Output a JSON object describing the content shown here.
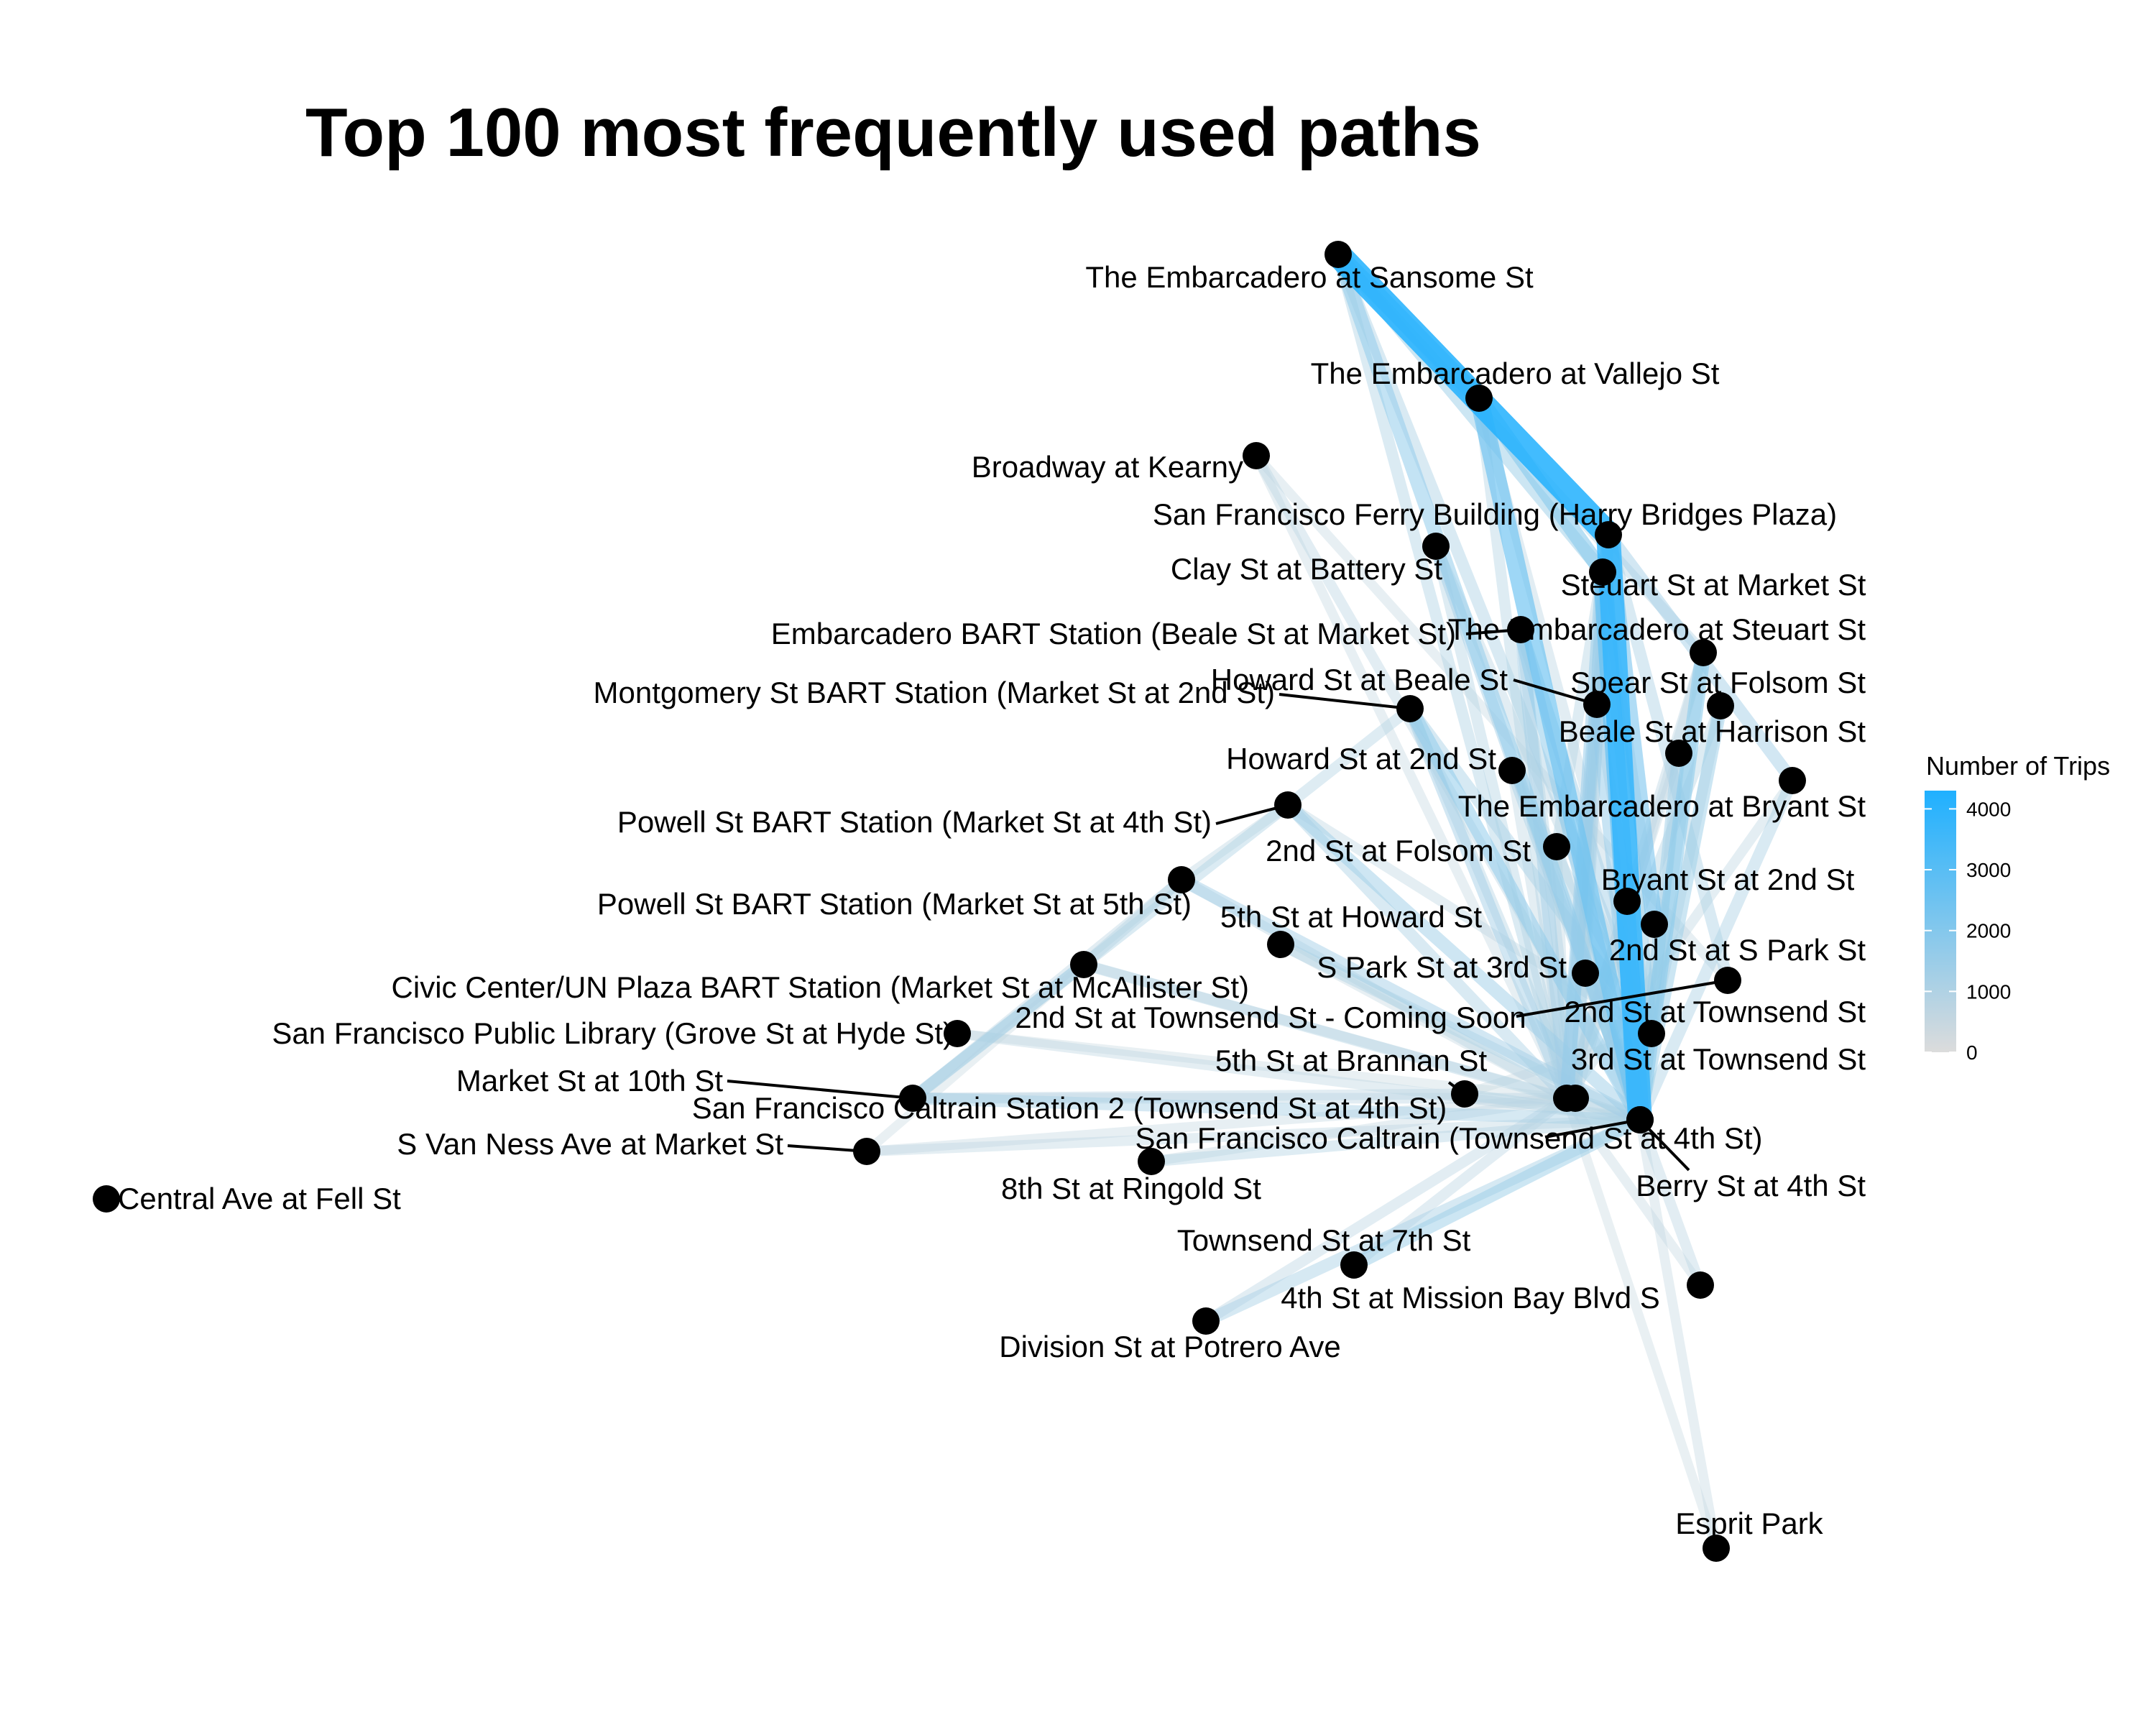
{
  "title": "Top 100 most frequently used paths",
  "legend": {
    "title": "Number of Trips",
    "ticks": [
      "0",
      "1000",
      "2000",
      "3000",
      "4000"
    ],
    "tick_values": [
      0,
      1000,
      2000,
      3000,
      4000
    ],
    "max": 4300,
    "color_low": "#dcdcdc",
    "color_high": "#1fb0ff"
  },
  "chart_data": {
    "type": "network",
    "stations": [
      {
        "id": "sansome",
        "label": "The Embarcadero at Sansome St"
      },
      {
        "id": "vallejo",
        "label": "The Embarcadero at Vallejo St"
      },
      {
        "id": "broadway",
        "label": "Broadway at Kearny"
      },
      {
        "id": "ferry",
        "label": "San Francisco Ferry Building (Harry Bridges Plaza)"
      },
      {
        "id": "clay",
        "label": "Clay St at Battery St"
      },
      {
        "id": "steuart_market",
        "label": "Steuart St at Market St"
      },
      {
        "id": "embarcadero_bart",
        "label": "Embarcadero BART Station (Beale St at Market St)"
      },
      {
        "id": "embarcadero_steuart",
        "label": "The Embarcadero at Steuart St"
      },
      {
        "id": "montgomery_bart",
        "label": "Montgomery St BART Station (Market St at 2nd St)"
      },
      {
        "id": "howard_beale",
        "label": "Howard St at Beale St"
      },
      {
        "id": "spear_folsom",
        "label": "Spear St at Folsom St"
      },
      {
        "id": "beale_harrison",
        "label": "Beale St at Harrison St"
      },
      {
        "id": "howard_2nd",
        "label": "Howard St at 2nd St"
      },
      {
        "id": "embarcadero_bryant",
        "label": "The Embarcadero at Bryant St"
      },
      {
        "id": "powell_4th",
        "label": "Powell St BART Station (Market St at 4th St)"
      },
      {
        "id": "second_folsom",
        "label": "2nd St at Folsom St"
      },
      {
        "id": "bryant_2nd",
        "label": "Bryant St at 2nd St"
      },
      {
        "id": "powell_5th",
        "label": "Powell St BART Station (Market St at 5th St)"
      },
      {
        "id": "fifth_howard",
        "label": "5th St at Howard St"
      },
      {
        "id": "second_spark",
        "label": "2nd St at S Park St"
      },
      {
        "id": "spark_3rd",
        "label": "S Park St at 3rd St"
      },
      {
        "id": "civic_center",
        "label": "Civic Center/UN Plaza BART Station (Market St at McAllister St)"
      },
      {
        "id": "second_townsend_soon",
        "label": "2nd St at Townsend St - Coming Soon"
      },
      {
        "id": "second_townsend",
        "label": "2nd St at Townsend St"
      },
      {
        "id": "sf_library",
        "label": "San Francisco Public Library (Grove St at Hyde St)"
      },
      {
        "id": "third_townsend",
        "label": "3rd St at Townsend St"
      },
      {
        "id": "fifth_brannan",
        "label": "5th St at Brannan St"
      },
      {
        "id": "market_10th",
        "label": "Market St at 10th St"
      },
      {
        "id": "caltrain2",
        "label": "San Francisco Caltrain Station 2  (Townsend St at 4th St)"
      },
      {
        "id": "caltrain",
        "label": "San Francisco Caltrain (Townsend St at 4th St)"
      },
      {
        "id": "van_ness",
        "label": "S Van Ness Ave at Market St"
      },
      {
        "id": "berry_4th",
        "label": "Berry St at 4th St"
      },
      {
        "id": "central_fell",
        "label": "Central Ave at Fell St"
      },
      {
        "id": "ringold_8th",
        "label": "8th St at Ringold St"
      },
      {
        "id": "townsend_7th",
        "label": "Townsend St at 7th St"
      },
      {
        "id": "mission_bay",
        "label": "4th St at Mission Bay Blvd S"
      },
      {
        "id": "division",
        "label": "Division St at Potrero Ave"
      },
      {
        "id": "esprit",
        "label": "Esprit Park"
      }
    ],
    "paths": [
      {
        "from": "sansome",
        "to": "ferry",
        "trips": 4200
      },
      {
        "from": "vallejo",
        "to": "caltrain",
        "trips": 2600
      },
      {
        "from": "ferry",
        "to": "caltrain",
        "trips": 3900
      },
      {
        "from": "steuart_market",
        "to": "caltrain",
        "trips": 2800
      },
      {
        "from": "sansome",
        "to": "vallejo",
        "trips": 2300
      },
      {
        "from": "vallejo",
        "to": "steuart_market",
        "trips": 2000
      },
      {
        "from": "embarcadero_steuart",
        "to": "caltrain",
        "trips": 1900
      },
      {
        "from": "ferry",
        "to": "second_spark",
        "trips": 2200
      },
      {
        "from": "sansome",
        "to": "caltrain",
        "trips": 1700
      },
      {
        "from": "sansome",
        "to": "steuart_market",
        "trips": 1500
      },
      {
        "from": "embarcadero_bart",
        "to": "caltrain",
        "trips": 1700
      },
      {
        "from": "howard_beale",
        "to": "caltrain",
        "trips": 1600
      },
      {
        "from": "spear_folsom",
        "to": "caltrain",
        "trips": 1500
      },
      {
        "from": "beale_harrison",
        "to": "caltrain",
        "trips": 1400
      },
      {
        "from": "ferry",
        "to": "embarcadero_bryant",
        "trips": 1300
      },
      {
        "from": "embarcadero_bryant",
        "to": "caltrain",
        "trips": 1100
      },
      {
        "from": "clay",
        "to": "caltrain",
        "trips": 1300
      },
      {
        "from": "montgomery_bart",
        "to": "caltrain",
        "trips": 1700
      },
      {
        "from": "montgomery_bart",
        "to": "second_townsend",
        "trips": 1200
      },
      {
        "from": "howard_2nd",
        "to": "caltrain",
        "trips": 1200
      },
      {
        "from": "second_folsom",
        "to": "caltrain",
        "trips": 1000
      },
      {
        "from": "bryant_2nd",
        "to": "caltrain",
        "trips": 900
      },
      {
        "from": "steuart_market",
        "to": "second_townsend",
        "trips": 1500
      },
      {
        "from": "embarcadero_bart",
        "to": "second_townsend",
        "trips": 1300
      },
      {
        "from": "ferry",
        "to": "third_townsend",
        "trips": 1200
      },
      {
        "from": "steuart_market",
        "to": "caltrain2",
        "trips": 1600
      },
      {
        "from": "embarcadero_bart",
        "to": "caltrain2",
        "trips": 1300
      },
      {
        "from": "ferry",
        "to": "caltrain2",
        "trips": 1400
      },
      {
        "from": "howard_beale",
        "to": "caltrain2",
        "trips": 1000
      },
      {
        "from": "spark_3rd",
        "to": "caltrain",
        "trips": 900
      },
      {
        "from": "powell_4th",
        "to": "caltrain",
        "trips": 1400
      },
      {
        "from": "powell_4th",
        "to": "market_10th",
        "trips": 1000
      },
      {
        "from": "powell_4th",
        "to": "montgomery_bart",
        "trips": 900
      },
      {
        "from": "powell_5th",
        "to": "caltrain",
        "trips": 1300
      },
      {
        "from": "powell_5th",
        "to": "civic_center",
        "trips": 900
      },
      {
        "from": "civic_center",
        "to": "market_10th",
        "trips": 1200
      },
      {
        "from": "civic_center",
        "to": "caltrain",
        "trips": 900
      },
      {
        "from": "sf_library",
        "to": "caltrain",
        "trips": 700
      },
      {
        "from": "market_10th",
        "to": "caltrain",
        "trips": 1200
      },
      {
        "from": "market_10th",
        "to": "fifth_brannan",
        "trips": 800
      },
      {
        "from": "van_ness",
        "to": "caltrain",
        "trips": 700
      },
      {
        "from": "ringold_8th",
        "to": "caltrain",
        "trips": 900
      },
      {
        "from": "townsend_7th",
        "to": "caltrain",
        "trips": 1500
      },
      {
        "from": "division",
        "to": "caltrain",
        "trips": 1200
      },
      {
        "from": "fifth_howard",
        "to": "caltrain",
        "trips": 1000
      },
      {
        "from": "fifth_brannan",
        "to": "caltrain",
        "trips": 900
      },
      {
        "from": "mission_bay",
        "to": "caltrain",
        "trips": 800
      },
      {
        "from": "esprit",
        "to": "caltrain",
        "trips": 600
      },
      {
        "from": "broadway",
        "to": "caltrain",
        "trips": 800
      },
      {
        "from": "broadway",
        "to": "second_townsend_soon",
        "trips": 600
      },
      {
        "from": "spear_folsom",
        "to": "caltrain2",
        "trips": 900
      },
      {
        "from": "clay",
        "to": "caltrain2",
        "trips": 900
      },
      {
        "from": "sansome",
        "to": "embarcadero_steuart",
        "trips": 900
      },
      {
        "from": "sansome",
        "to": "second_townsend",
        "trips": 1100
      },
      {
        "from": "sansome",
        "to": "caltrain2",
        "trips": 1000
      },
      {
        "from": "ferry",
        "to": "second_folsom",
        "trips": 900
      },
      {
        "from": "ferry",
        "to": "second_townsend_soon",
        "trips": 1100
      },
      {
        "from": "steuart_market",
        "to": "third_townsend",
        "trips": 1100
      },
      {
        "from": "embarcadero_steuart",
        "to": "second_townsend",
        "trips": 1000
      },
      {
        "from": "howard_2nd",
        "to": "second_townsend",
        "trips": 800
      },
      {
        "from": "beale_harrison",
        "to": "second_townsend",
        "trips": 700
      },
      {
        "from": "powell_4th",
        "to": "second_townsend",
        "trips": 700
      },
      {
        "from": "powell_5th",
        "to": "caltrain2",
        "trips": 800
      },
      {
        "from": "civic_center",
        "to": "caltrain2",
        "trips": 700
      },
      {
        "from": "market_10th",
        "to": "caltrain2",
        "trips": 800
      },
      {
        "from": "van_ness",
        "to": "caltrain2",
        "trips": 600
      },
      {
        "from": "townsend_7th",
        "to": "caltrain2",
        "trips": 800
      },
      {
        "from": "fifth_howard",
        "to": "caltrain2",
        "trips": 600
      },
      {
        "from": "vallejo",
        "to": "caltrain2",
        "trips": 900
      },
      {
        "from": "vallejo",
        "to": "second_townsend",
        "trips": 800
      },
      {
        "from": "embarcadero_steuart",
        "to": "caltrain2",
        "trips": 800
      },
      {
        "from": "bryant_2nd",
        "to": "caltrain2",
        "trips": 600
      },
      {
        "from": "second_folsom",
        "to": "caltrain2",
        "trips": 700
      },
      {
        "from": "mission_bay",
        "to": "caltrain2",
        "trips": 600
      },
      {
        "from": "spark_3rd",
        "to": "second_townsend",
        "trips": 600
      },
      {
        "from": "third_townsend",
        "to": "caltrain",
        "trips": 700
      },
      {
        "from": "second_spark",
        "to": "caltrain",
        "trips": 900
      },
      {
        "from": "second_townsend",
        "to": "caltrain",
        "trips": 900
      },
      {
        "from": "montgomery_bart",
        "to": "caltrain2",
        "trips": 1300
      },
      {
        "from": "montgomery_bart",
        "to": "third_townsend",
        "trips": 900
      },
      {
        "from": "embarcadero_bart",
        "to": "third_townsend",
        "trips": 900
      },
      {
        "from": "ferry",
        "to": "spark_3rd",
        "trips": 800
      },
      {
        "from": "clay",
        "to": "second_townsend",
        "trips": 800
      },
      {
        "from": "howard_beale",
        "to": "second_townsend",
        "trips": 800
      },
      {
        "from": "spear_folsom",
        "to": "second_townsend",
        "trips": 800
      },
      {
        "from": "sf_library",
        "to": "caltrain2",
        "trips": 500
      },
      {
        "from": "powell_5th",
        "to": "market_10th",
        "trips": 800
      },
      {
        "from": "civic_center",
        "to": "van_ness",
        "trips": 500
      },
      {
        "from": "powell_4th",
        "to": "powell_5th",
        "trips": 700
      },
      {
        "from": "powell_4th",
        "to": "caltrain2",
        "trips": 1100
      },
      {
        "from": "division",
        "to": "caltrain2",
        "trips": 800
      },
      {
        "from": "ringold_8th",
        "to": "caltrain2",
        "trips": 600
      },
      {
        "from": "fifth_brannan",
        "to": "second_townsend",
        "trips": 500
      },
      {
        "from": "esprit",
        "to": "caltrain2",
        "trips": 500
      },
      {
        "from": "broadway",
        "to": "caltrain2",
        "trips": 600
      },
      {
        "from": "embarcadero_bryant",
        "to": "caltrain2",
        "trips": 700
      },
      {
        "from": "beale_harrison",
        "to": "caltrain2",
        "trips": 600
      },
      {
        "from": "howard_2nd",
        "to": "caltrain2",
        "trips": 700
      },
      {
        "from": "steuart_market",
        "to": "second_spark",
        "trips": 900
      },
      {
        "from": "embarcadero_steuart",
        "to": "third_townsend",
        "trips": 700
      }
    ]
  }
}
